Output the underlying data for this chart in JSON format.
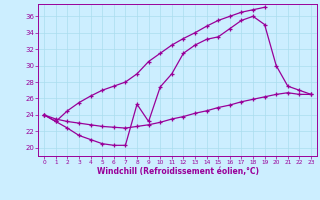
{
  "bg_color": "#cceeff",
  "line_color": "#990099",
  "grid_color": "#aaddee",
  "xlabel": "Windchill (Refroidissement éolien,°C)",
  "xlim": [
    -0.5,
    23.5
  ],
  "ylim": [
    19.0,
    37.5
  ],
  "yticks": [
    20,
    22,
    24,
    26,
    28,
    30,
    32,
    34,
    36
  ],
  "xticks": [
    0,
    1,
    2,
    3,
    4,
    5,
    6,
    7,
    8,
    9,
    10,
    11,
    12,
    13,
    14,
    15,
    16,
    17,
    18,
    19,
    20,
    21,
    22,
    23
  ],
  "line1_x": [
    0,
    1,
    2,
    3,
    4,
    5,
    6,
    7,
    8,
    9,
    10,
    11,
    12,
    13,
    14,
    15,
    16,
    17,
    18,
    19
  ],
  "line1_y": [
    24.0,
    23.2,
    24.5,
    25.5,
    26.3,
    27.0,
    27.5,
    28.0,
    29.0,
    30.5,
    31.5,
    32.5,
    33.3,
    34.0,
    34.8,
    35.5,
    36.0,
    36.5,
    36.8,
    37.1
  ],
  "line2_x": [
    0,
    1,
    2,
    3,
    4,
    5,
    6,
    7,
    8,
    9,
    10,
    11,
    12,
    13,
    14,
    15,
    16,
    17,
    18,
    19,
    20,
    21,
    22,
    23
  ],
  "line2_y": [
    24.0,
    23.2,
    22.4,
    21.5,
    21.0,
    20.5,
    20.3,
    20.3,
    25.3,
    23.2,
    27.4,
    29.0,
    31.5,
    32.5,
    33.2,
    33.5,
    34.5,
    35.5,
    36.0,
    35.0,
    30.0,
    27.5,
    27.0,
    26.5
  ],
  "line3_x": [
    0,
    1,
    2,
    3,
    4,
    5,
    6,
    7,
    8,
    9,
    10,
    11,
    12,
    13,
    14,
    15,
    16,
    17,
    18,
    19,
    20,
    21,
    22,
    23
  ],
  "line3_y": [
    24.0,
    23.5,
    23.2,
    23.0,
    22.8,
    22.6,
    22.5,
    22.4,
    22.6,
    22.8,
    23.1,
    23.5,
    23.8,
    24.2,
    24.5,
    24.9,
    25.2,
    25.6,
    25.9,
    26.2,
    26.5,
    26.7,
    26.5,
    26.5
  ]
}
